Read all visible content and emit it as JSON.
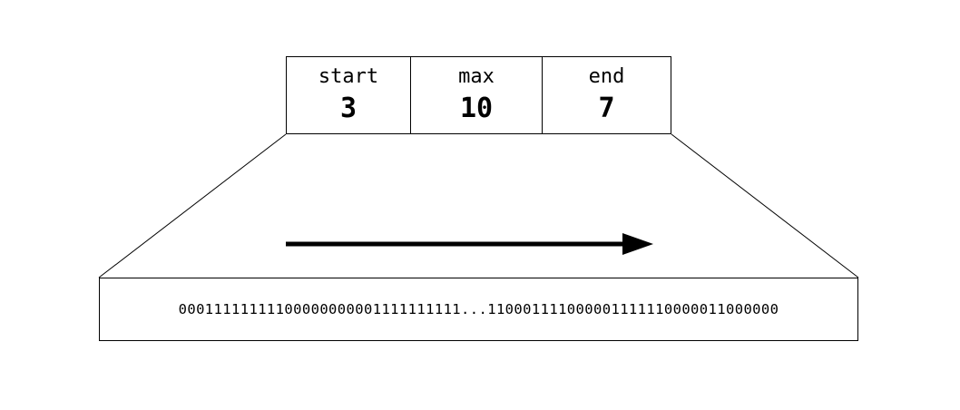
{
  "header": {
    "cells": [
      {
        "label": "start",
        "value": "3"
      },
      {
        "label": "max",
        "value": "10"
      },
      {
        "label": "end",
        "value": "7"
      }
    ]
  },
  "bitstream": {
    "text": "00011111111100000000001111111111...110001111000001111110000011000000"
  },
  "arrow": {
    "direction": "right"
  },
  "colors": {
    "stroke": "#000000",
    "background": "#ffffff"
  }
}
